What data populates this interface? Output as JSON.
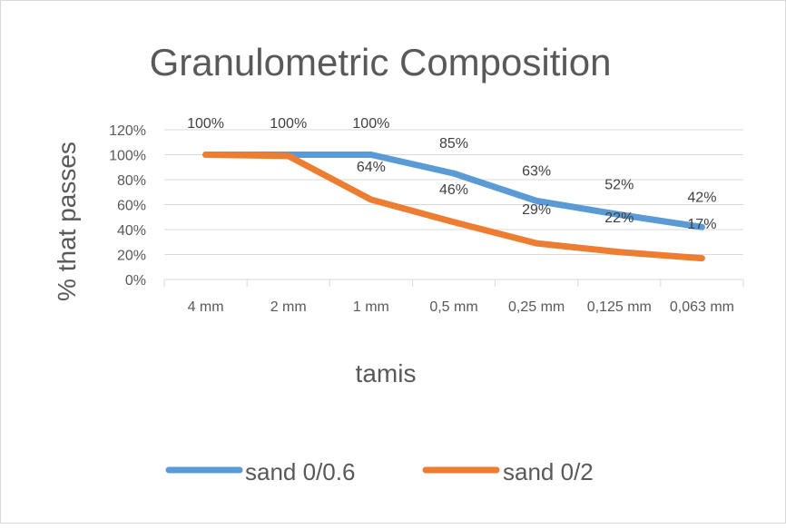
{
  "chart_data": {
    "type": "line",
    "title": "Granulometric Composition",
    "xlabel": "tamis",
    "ylabel": "% that passes",
    "categories": [
      "4 mm",
      "2 mm",
      "1 mm",
      "0,5 mm",
      "0,25 mm",
      "0,125 mm",
      "0,063 mm"
    ],
    "ylim": [
      0,
      120
    ],
    "yticks": [
      "0%",
      "20%",
      "40%",
      "60%",
      "80%",
      "100%",
      "120%"
    ],
    "grid": true,
    "legend_position": "bottom",
    "series": [
      {
        "name": "sand 0/0.6",
        "color": "#5b9bd5",
        "values": [
          100,
          100,
          100,
          85,
          63,
          52,
          42
        ],
        "labels": [
          "100%",
          "100%",
          "100%",
          "85%",
          "63%",
          "52%",
          "42%"
        ]
      },
      {
        "name": "sand 0/2",
        "color": "#ed7d31",
        "values": [
          100,
          99,
          64,
          46,
          29,
          22,
          17
        ],
        "labels": [
          "",
          "",
          "64%",
          "46%",
          "29%",
          "22%",
          "17%"
        ]
      }
    ]
  }
}
